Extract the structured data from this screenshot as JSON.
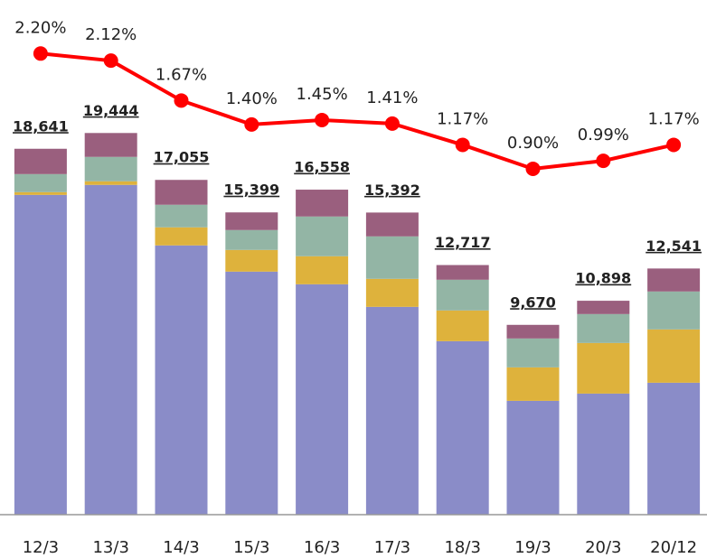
{
  "chart_data": {
    "type": "bar",
    "stacked": true,
    "categories": [
      "12/3",
      "13/3",
      "14/3",
      "15/3",
      "16/3",
      "17/3",
      "18/3",
      "19/3",
      "20/3",
      "20/12"
    ],
    "ylim": [
      0,
      25300
    ],
    "y2lim": [
      -3,
      2.6
    ],
    "series": [
      {
        "color": "#8a8cc8",
        "values": [
          16290,
          16800,
          13717,
          12382,
          11738,
          10587,
          8838,
          5800,
          6168,
          6721
        ]
      },
      {
        "color": "#deb23c",
        "values": [
          140,
          184,
          921,
          1105,
          1427,
          1427,
          1565,
          1703,
          2578,
          2716
        ]
      },
      {
        "color": "#93b5a5",
        "values": [
          920,
          1243,
          1151,
          1013,
          2025,
          2163,
          1565,
          1473,
          1473,
          1933
        ]
      },
      {
        "color": "#9a5f7e",
        "values": [
          1291,
          1217,
          1266,
          899,
          1368,
          1215,
          749,
          694,
          679,
          1171
        ]
      }
    ],
    "totals": {
      "values": [
        18641,
        19444,
        17055,
        15399,
        16558,
        15392,
        12717,
        9670,
        10898,
        12541
      ],
      "value_labels": [
        "18,641",
        "19,444",
        "17,055",
        "15,399",
        "16,558",
        "15,392",
        "12,717",
        "9,670",
        "10,898",
        "12,541"
      ]
    },
    "line": {
      "type": "line",
      "axis": "y2",
      "color": "#ff0000",
      "values": [
        2.2,
        2.12,
        1.67,
        1.4,
        1.45,
        1.41,
        1.17,
        0.9,
        0.99,
        1.17
      ],
      "value_labels": [
        "2.20%",
        "2.12%",
        "1.67%",
        "1.40%",
        "1.45%",
        "1.41%",
        "1.17%",
        "0.90%",
        "0.99%",
        "1.17%"
      ]
    }
  }
}
